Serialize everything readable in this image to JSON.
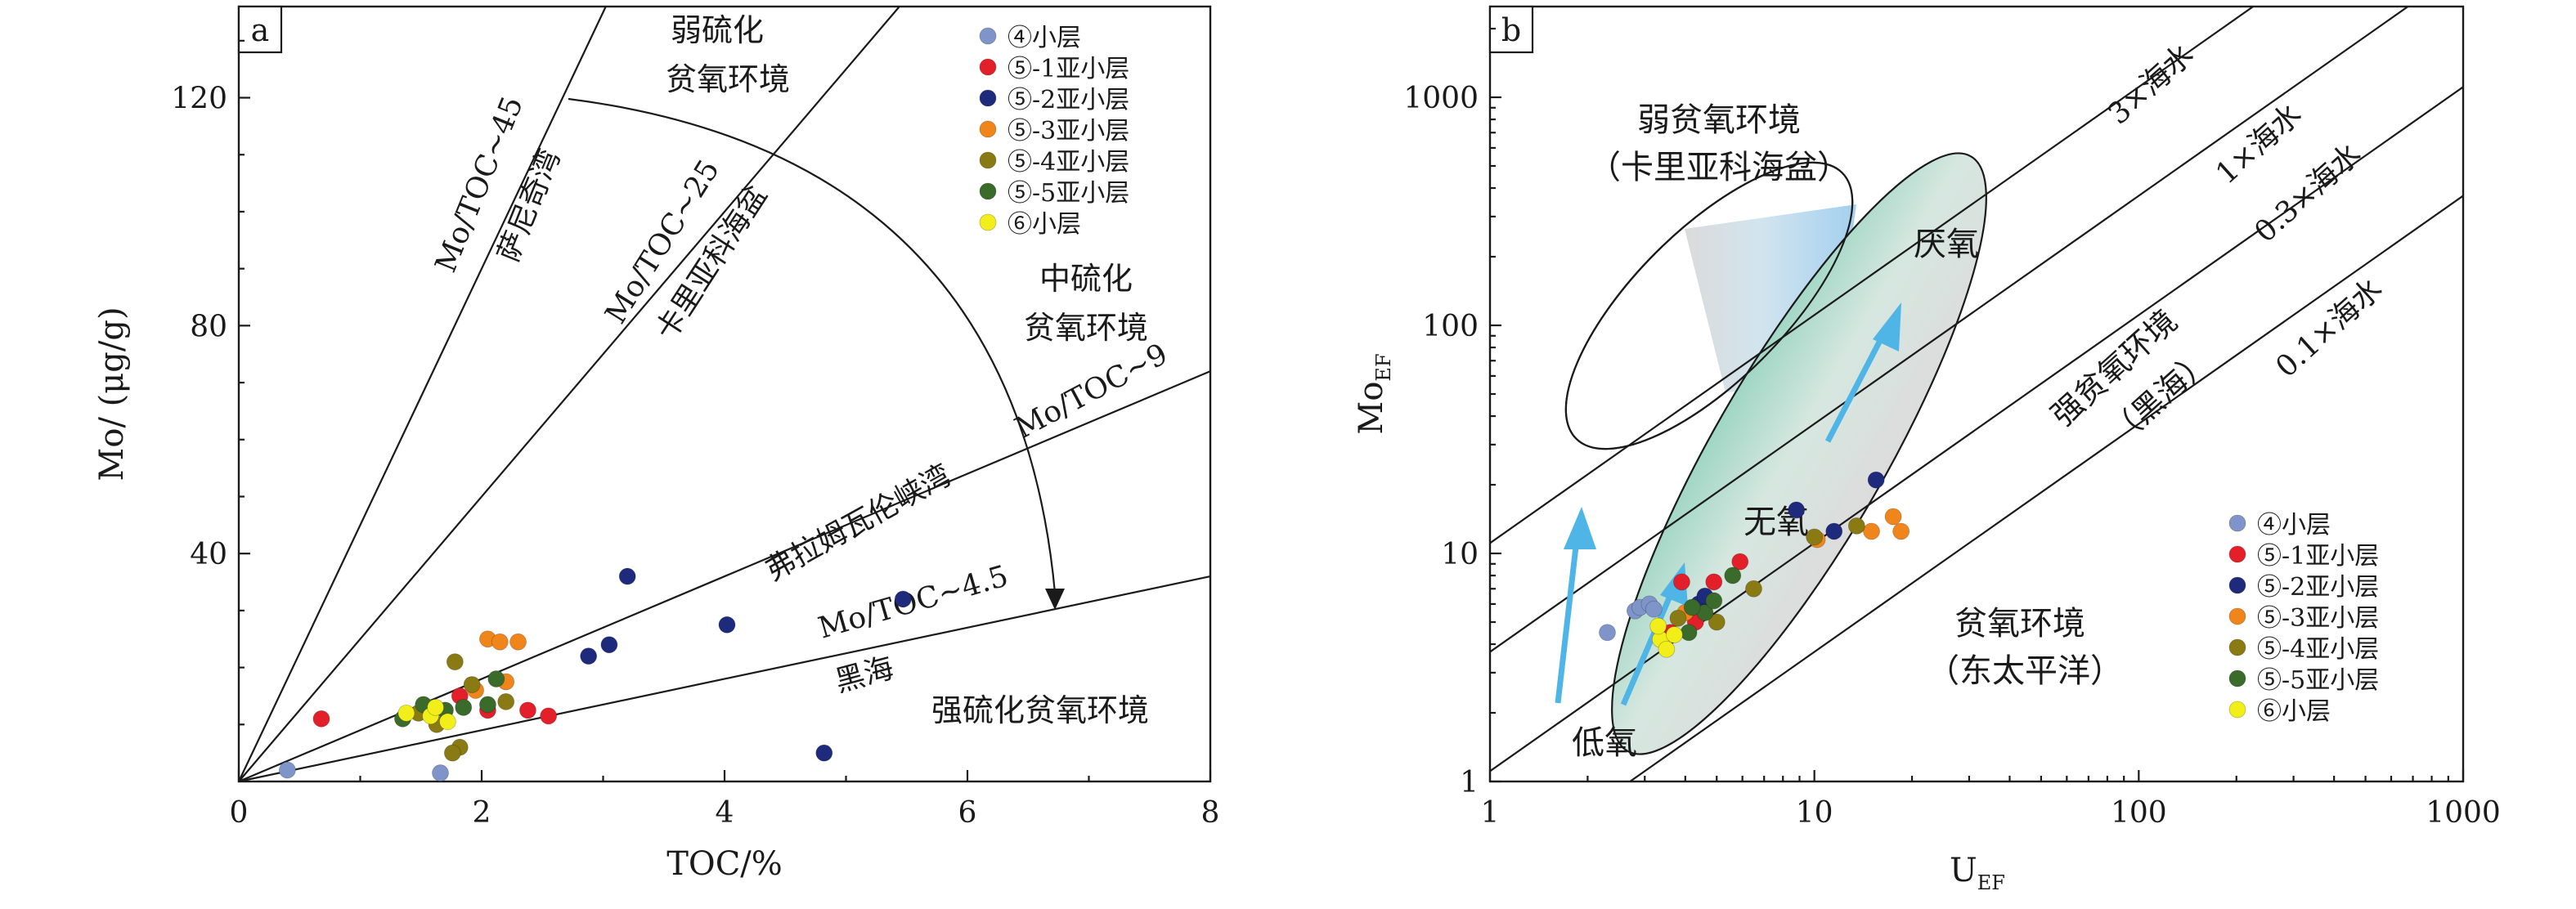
{
  "colors": {
    "layer4": "#7f95c9",
    "layer5_1": "#e3202a",
    "layer5_2": "#1e2a7c",
    "layer5_3": "#f0851c",
    "layer5_4": "#8a7a14",
    "layer5_5": "#3a6b2a",
    "layer6": "#f2ee1a",
    "arrow": "#4fb4e6"
  },
  "chart_data": [
    {
      "type": "scatter",
      "panel_label": "a",
      "xlabel": "TOC/%",
      "ylabel": "Mo/ (μg/g)",
      "xlim": [
        0,
        8
      ],
      "ylim": [
        0,
        136
      ],
      "x_ticks": [
        "0",
        "2",
        "4",
        "6",
        "8"
      ],
      "y_ticks": [
        "40",
        "80",
        "120"
      ],
      "reference_lines": [
        {
          "slope": 45,
          "label1": "Mo/TOC~45",
          "label2": "萨尼奇湾"
        },
        {
          "slope": 25,
          "label1": "Mo/TOC~25",
          "label2": "卡里亚科海盆"
        },
        {
          "slope": 9,
          "label1": "Mo/TOC~9",
          "label2": "弗拉姆瓦伦峡湾"
        },
        {
          "slope": 4.5,
          "label1": "Mo/TOC~4.5",
          "label2": "黑海"
        }
      ],
      "annotations": [
        "弱硫化",
        "贫氧环境",
        "中硫化",
        "贫氧环境",
        "强硫化贫氧环境"
      ],
      "legend": [
        "④小层",
        "⑤-1亚小层",
        "⑤-2亚小层",
        "⑤-3亚小层",
        "⑤-4亚小层",
        "⑤-5亚小层",
        "⑥小层"
      ],
      "series": [
        {
          "name": "④小层",
          "points": [
            [
              0.4,
              2
            ],
            [
              1.66,
              1.5
            ]
          ]
        },
        {
          "name": "⑤-1亚小层",
          "points": [
            [
              0.68,
              11
            ],
            [
              1.82,
              15
            ],
            [
              2.05,
              12.5
            ],
            [
              2.38,
              12.5
            ],
            [
              2.55,
              11.5
            ]
          ]
        },
        {
          "name": "⑤-2亚小层",
          "points": [
            [
              2.88,
              22
            ],
            [
              3.05,
              24
            ],
            [
              3.2,
              36
            ],
            [
              4.02,
              27.5
            ],
            [
              4.82,
              5
            ],
            [
              5.47,
              32
            ]
          ]
        },
        {
          "name": "⑤-3亚小层",
          "points": [
            [
              2.05,
              25
            ],
            [
              2.15,
              24.5
            ],
            [
              2.3,
              24.5
            ],
            [
              2.2,
              17.5
            ],
            [
              1.95,
              16
            ]
          ]
        },
        {
          "name": "⑤-4亚小层",
          "points": [
            [
              1.48,
              12
            ],
            [
              1.56,
              13
            ],
            [
              1.78,
              21
            ],
            [
              1.82,
              6
            ],
            [
              1.76,
              5
            ],
            [
              1.92,
              17
            ],
            [
              1.63,
              10
            ],
            [
              2.2,
              14
            ]
          ]
        },
        {
          "name": "⑤-5亚小层",
          "points": [
            [
              1.35,
              11
            ],
            [
              1.52,
              13.5
            ],
            [
              1.7,
              12.5
            ],
            [
              1.85,
              13
            ],
            [
              2.05,
              13.5
            ],
            [
              2.12,
              18
            ]
          ]
        },
        {
          "name": "⑥小层",
          "points": [
            [
              1.38,
              12
            ],
            [
              1.58,
              11.5
            ],
            [
              1.72,
              10.5
            ],
            [
              1.62,
              13
            ]
          ]
        }
      ]
    },
    {
      "type": "scatter",
      "panel_label": "b",
      "xlabel": "U",
      "xlabel_sub": "EF",
      "ylabel": "Mo",
      "ylabel_sub": "EF",
      "xscale": "log",
      "yscale": "log",
      "xlim": [
        1,
        1000
      ],
      "ylim": [
        1,
        2500
      ],
      "x_ticks": [
        "1",
        "10",
        "100",
        "1000"
      ],
      "y_ticks": [
        "1",
        "10",
        "100",
        "1000"
      ],
      "reference_lines": [
        {
          "multiplier": 3,
          "label": "3×海水"
        },
        {
          "multiplier": 1,
          "label": "1×海水"
        },
        {
          "multiplier": 0.3,
          "label": "0.3×海水"
        },
        {
          "multiplier": 0.1,
          "label": "0.1×海水"
        }
      ],
      "annotations": [
        "弱贫氧环境",
        "（卡里亚科海盆）",
        "厌氧",
        "强贫氧环境",
        "（黑海）",
        "无氧",
        "贫氧环境",
        "（东太平洋）",
        "低氧"
      ],
      "legend": [
        "④小层",
        "⑤-1亚小层",
        "⑤-2亚小层",
        "⑤-3亚小层",
        "⑤-4亚小层",
        "⑤-5亚小层",
        "⑥小层"
      ],
      "series": [
        {
          "name": "④小层",
          "points": [
            [
              2.3,
              4.5
            ],
            [
              2.8,
              5.6
            ],
            [
              2.9,
              5.8
            ],
            [
              3.1,
              6.0
            ],
            [
              3.2,
              5.7
            ]
          ]
        },
        {
          "name": "⑤-1亚小层",
          "points": [
            [
              3.6,
              4.5
            ],
            [
              3.9,
              7.5
            ],
            [
              4.9,
              7.5
            ],
            [
              5.9,
              9.2
            ],
            [
              4.3,
              5.0
            ]
          ]
        },
        {
          "name": "⑤-2亚小层",
          "points": [
            [
              8.8,
              15.5
            ],
            [
              11.5,
              12.5
            ],
            [
              15.5,
              21
            ],
            [
              4.4,
              6.0
            ],
            [
              4.6,
              6.5
            ]
          ]
        },
        {
          "name": "⑤-3亚小层",
          "points": [
            [
              10.2,
              11.5
            ],
            [
              15.0,
              12.5
            ],
            [
              17.5,
              14.5
            ],
            [
              18.5,
              12.5
            ],
            [
              4.0,
              5.5
            ]
          ]
        },
        {
          "name": "⑤-4亚小层",
          "points": [
            [
              3.8,
              5.2
            ],
            [
              5.0,
              5.0
            ],
            [
              6.5,
              7.0
            ],
            [
              13.5,
              13.2
            ],
            [
              10.0,
              11.8
            ]
          ]
        },
        {
          "name": "⑤-5亚小层",
          "points": [
            [
              4.1,
              4.5
            ],
            [
              4.6,
              5.5
            ],
            [
              5.6,
              8.0
            ],
            [
              4.2,
              5.8
            ],
            [
              4.9,
              6.2
            ]
          ]
        },
        {
          "name": "⑥小层",
          "points": [
            [
              3.35,
              4.2
            ],
            [
              3.5,
              3.8
            ],
            [
              3.3,
              4.8
            ],
            [
              3.7,
              4.4
            ]
          ]
        }
      ]
    }
  ]
}
